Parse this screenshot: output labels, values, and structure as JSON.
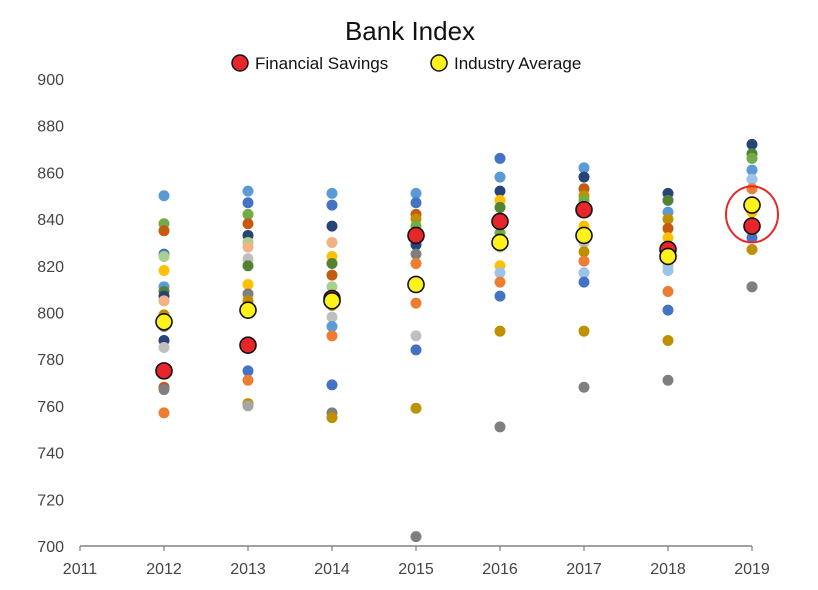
{
  "chart_data": {
    "type": "scatter",
    "title": "Bank Index",
    "xlabel": "",
    "ylabel": "",
    "xlim": [
      2011,
      2019
    ],
    "ylim": [
      700,
      900
    ],
    "x_ticks": [
      2011,
      2012,
      2013,
      2014,
      2015,
      2016,
      2017,
      2018,
      2019
    ],
    "y_ticks": [
      700,
      720,
      740,
      760,
      780,
      800,
      820,
      840,
      860,
      880,
      900
    ],
    "grid": false,
    "legend_position": "top-center",
    "series": [
      {
        "name": "Financial Savings",
        "color": "#e8252b",
        "x": [
          2012,
          2013,
          2014,
          2015,
          2016,
          2017,
          2018,
          2019
        ],
        "y": [
          775,
          786,
          806,
          833,
          839,
          844,
          827,
          837
        ]
      },
      {
        "name": "Industry Average",
        "color": "#fff21a",
        "x": [
          2012,
          2013,
          2014,
          2015,
          2016,
          2017,
          2018,
          2019
        ],
        "y": [
          796,
          801,
          805,
          812,
          830,
          833,
          824,
          846
        ]
      }
    ],
    "peer_banks": [
      {
        "x": 2012,
        "values": [
          850,
          838,
          835,
          825,
          824,
          818,
          811,
          809,
          807,
          805,
          799,
          794,
          788,
          785,
          768,
          767,
          757
        ],
        "colors": [
          "#5b9bd5",
          "#70ad47",
          "#c55a11",
          "#4472c4",
          "#a9d18e",
          "#ffc000",
          "#5b9bd5",
          "#548235",
          "#264478",
          "#f4b183",
          "#bf9000",
          "#7f7f7f",
          "#264478",
          "#bfbfbf",
          "#c55a11",
          "#7f7f7f",
          "#ed7d31"
        ]
      },
      {
        "x": 2013,
        "values": [
          852,
          847,
          842,
          838,
          833,
          830,
          828,
          823,
          820,
          812,
          808,
          805,
          775,
          771,
          761,
          760
        ],
        "colors": [
          "#5b9bd5",
          "#4472c4",
          "#70ad47",
          "#c55a11",
          "#264478",
          "#a9d18e",
          "#f4b183",
          "#bfbfbf",
          "#548235",
          "#ffc000",
          "#7f7f7f",
          "#bf9000",
          "#4472c4",
          "#ed7d31",
          "#bf9000",
          "#a5a5a5"
        ]
      },
      {
        "x": 2014,
        "values": [
          851,
          846,
          837,
          830,
          824,
          821,
          816,
          811,
          803,
          798,
          794,
          790,
          769,
          757,
          755
        ],
        "colors": [
          "#5b9bd5",
          "#4472c4",
          "#264478",
          "#f4b183",
          "#ffc000",
          "#548235",
          "#c55a11",
          "#a9d18e",
          "#bf9000",
          "#bfbfbf",
          "#5b9bd5",
          "#ed7d31",
          "#4472c4",
          "#7f7f7f",
          "#bf9000"
        ]
      },
      {
        "x": 2015,
        "values": [
          851,
          847,
          842,
          840,
          837,
          829,
          825,
          821,
          804,
          790,
          784,
          759,
          704
        ],
        "colors": [
          "#5b9bd5",
          "#4472c4",
          "#c55a11",
          "#bf9000",
          "#70ad47",
          "#264478",
          "#7f7f7f",
          "#ed7d31",
          "#ed7d31",
          "#bfbfbf",
          "#4472c4",
          "#bf9000",
          "#7f7f7f"
        ]
      },
      {
        "x": 2016,
        "values": [
          866,
          858,
          852,
          848,
          845,
          840,
          834,
          828,
          820,
          817,
          813,
          807,
          792,
          751
        ],
        "colors": [
          "#4472c4",
          "#5b9bd5",
          "#264478",
          "#ffc000",
          "#548235",
          "#c55a11",
          "#70ad47",
          "#a9d18e",
          "#ffc000",
          "#9dc3e6",
          "#ed7d31",
          "#4472c4",
          "#bf9000",
          "#7f7f7f"
        ]
      },
      {
        "x": 2017,
        "values": [
          862,
          858,
          853,
          850,
          848,
          845,
          837,
          830,
          826,
          822,
          817,
          813,
          792,
          768
        ],
        "colors": [
          "#5b9bd5",
          "#264478",
          "#c55a11",
          "#bf9000",
          "#70ad47",
          "#4472c4",
          "#ffc000",
          "#bfbfbf",
          "#bf9000",
          "#ed7d31",
          "#9dc3e6",
          "#4472c4",
          "#bf9000",
          "#7f7f7f"
        ]
      },
      {
        "x": 2018,
        "values": [
          851,
          848,
          843,
          840,
          836,
          832,
          828,
          820,
          818,
          809,
          801,
          788,
          771
        ],
        "colors": [
          "#264478",
          "#548235",
          "#5b9bd5",
          "#bf9000",
          "#c55a11",
          "#ffc000",
          "#70ad47",
          "#bfbfbf",
          "#9dc3e6",
          "#ed7d31",
          "#4472c4",
          "#bf9000",
          "#7f7f7f"
        ]
      },
      {
        "x": 2019,
        "values": [
          872,
          868,
          866,
          861,
          857,
          853,
          843,
          836,
          832,
          827,
          811
        ],
        "colors": [
          "#264478",
          "#548235",
          "#70ad47",
          "#5b9bd5",
          "#9dc3e6",
          "#ed7d31",
          "#ffc000",
          "#c55a11",
          "#4472c4",
          "#bf9000",
          "#7f7f7f"
        ]
      }
    ],
    "highlight": {
      "x": 2019,
      "y_center": 842,
      "stroke": "#e8252b"
    },
    "axis_color": "#7f7f7f",
    "marker_outline": "#111111"
  }
}
